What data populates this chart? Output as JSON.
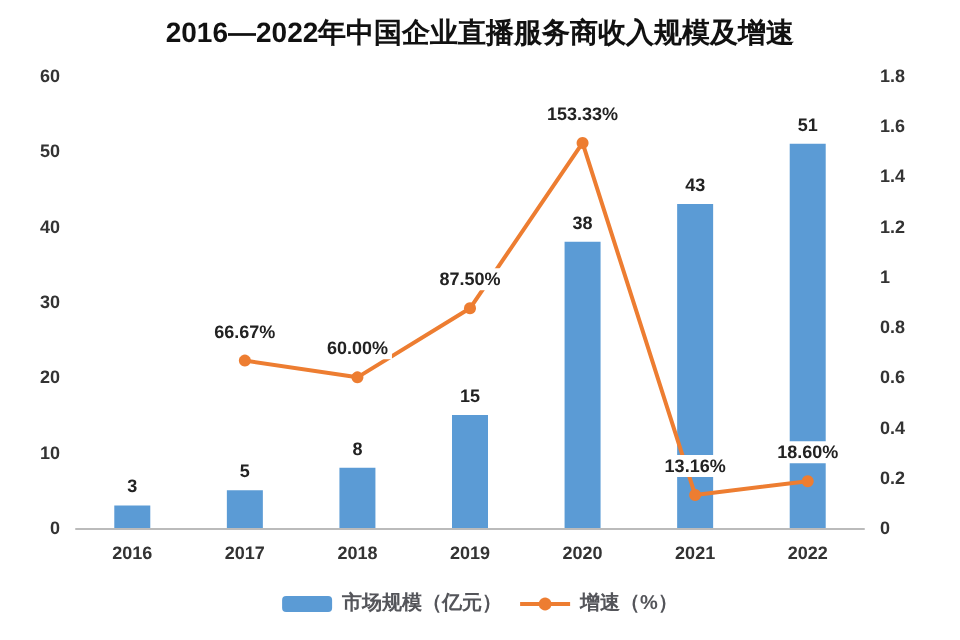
{
  "chart_data": {
    "type": "bar",
    "title": "2016—2022年中国企业直播服务商收入规模及增速",
    "categories": [
      "2016",
      "2017",
      "2018",
      "2019",
      "2020",
      "2021",
      "2022"
    ],
    "series": [
      {
        "name": "市场规模（亿元）",
        "color": "#5b9bd5",
        "values": [
          3,
          5,
          8,
          15,
          38,
          43,
          51
        ],
        "value_labels": [
          "3",
          "5",
          "8",
          "15",
          "38",
          "43",
          "51"
        ]
      },
      {
        "name": "增速（%）",
        "type": "line",
        "axis": "y2",
        "color": "#ed7d31",
        "marker": "circle",
        "values": [
          null,
          0.6667,
          0.6,
          0.875,
          1.5333,
          0.1316,
          0.186
        ],
        "value_labels": [
          null,
          "66.67%",
          "60.00%",
          "87.50%",
          "153.33%",
          "13.16%",
          "18.60%"
        ]
      }
    ],
    "ylim": [
      0,
      60
    ],
    "yticks": [
      0,
      10,
      20,
      30,
      40,
      50,
      60
    ],
    "y2lim": [
      0,
      1.8
    ],
    "y2ticks": [
      0,
      0.2,
      0.4,
      0.6,
      0.8,
      1,
      1.2,
      1.4,
      1.6,
      1.8
    ],
    "grid": false,
    "legend": "bottom"
  }
}
